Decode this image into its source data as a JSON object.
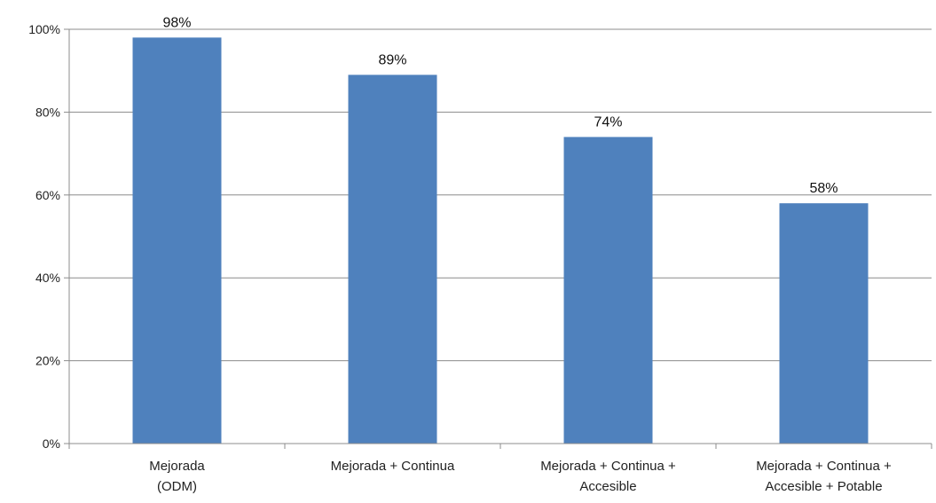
{
  "chart_data": {
    "type": "bar",
    "title": "",
    "xlabel": "",
    "ylabel": "",
    "categories": [
      [
        "Mejorada",
        "(ODM)"
      ],
      [
        "Mejorada + Continua"
      ],
      [
        "Mejorada + Continua +",
        "Accesible"
      ],
      [
        "Mejorada + Continua +",
        "Accesible + Potable"
      ]
    ],
    "values": [
      98,
      89,
      74,
      58
    ],
    "data_labels": [
      "98%",
      "89%",
      "74%",
      "58%"
    ],
    "ylim": [
      0,
      100
    ],
    "yticks": [
      0,
      20,
      40,
      60,
      80,
      100
    ],
    "ytick_labels": [
      "0%",
      "20%",
      "40%",
      "60%",
      "80%",
      "100%"
    ],
    "grid": true,
    "legend": "none",
    "colors": {
      "bar": "#4F81BD",
      "grid": "#8C8C8C",
      "axis": "#8C8C8C"
    }
  }
}
